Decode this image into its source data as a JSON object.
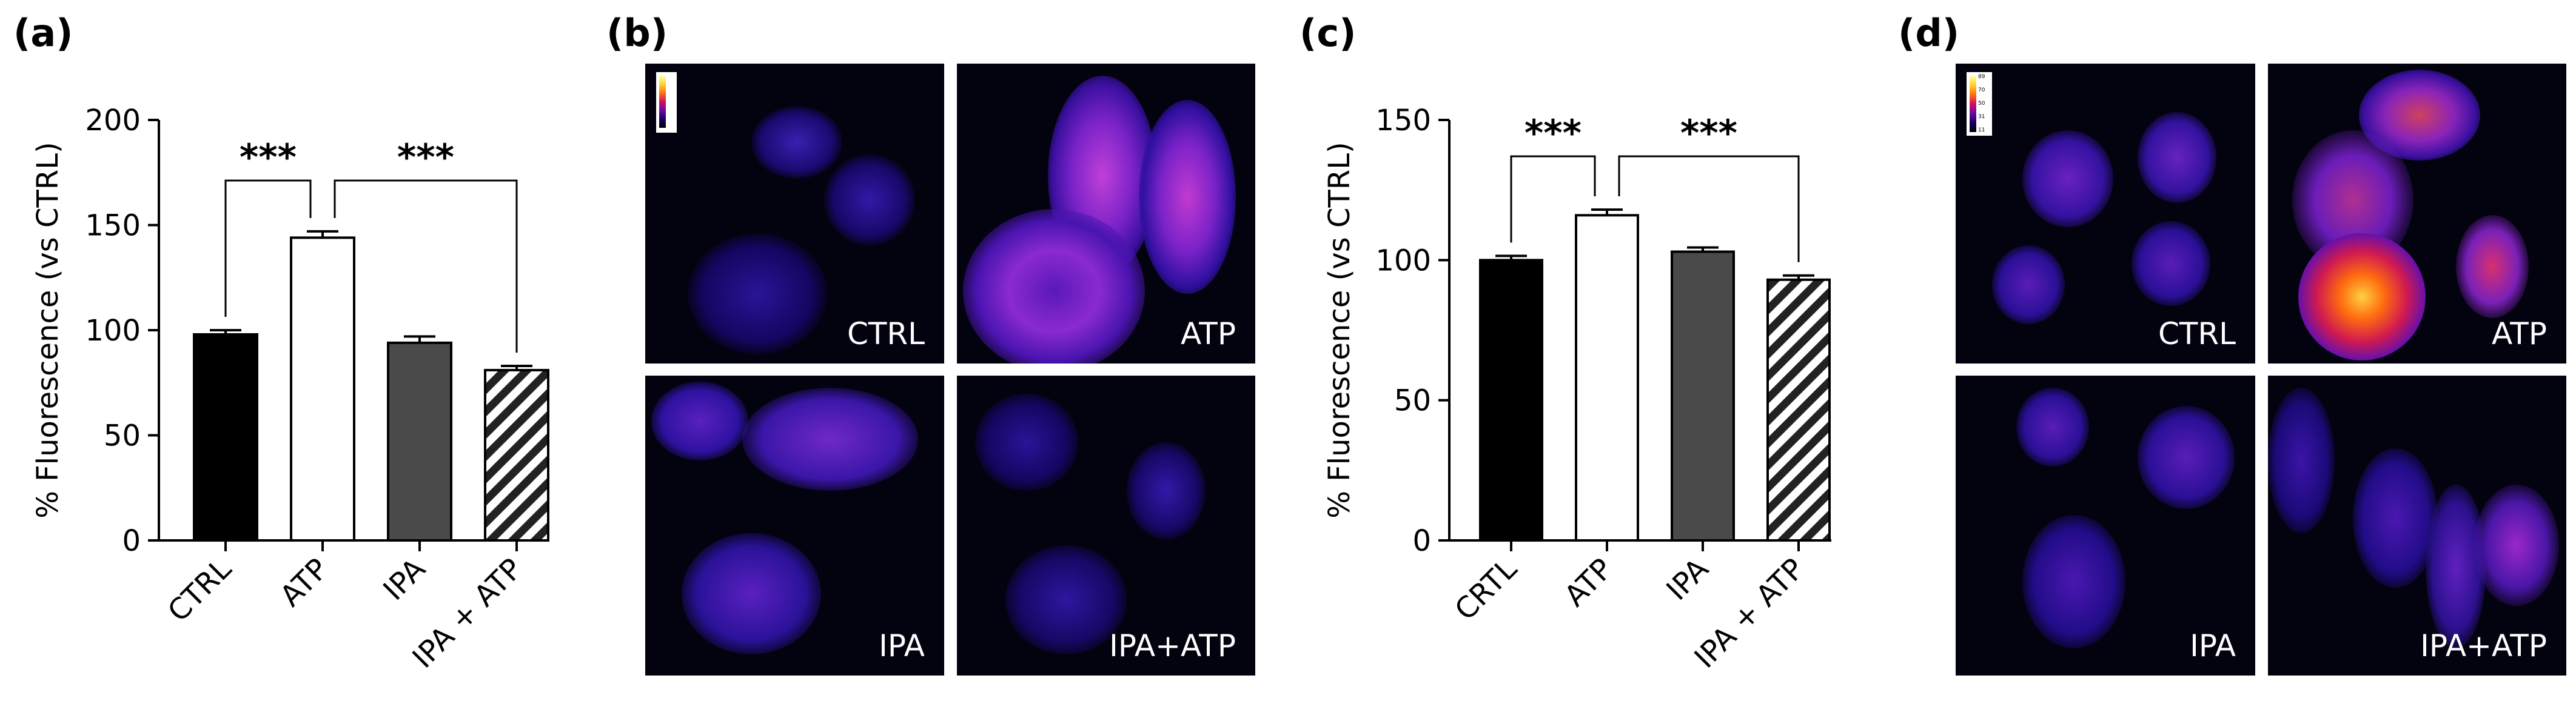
{
  "panel_labels": {
    "a": "(a)",
    "b": "(b)",
    "c": "(c)",
    "d": "(d)"
  },
  "chart_data": [
    {
      "type": "bar",
      "panel": "(a)",
      "ylabel": "% Fluorescence (vs CTRL)",
      "ylim": [
        0,
        200
      ],
      "yticks": [
        0,
        50,
        100,
        150,
        200
      ],
      "categories": [
        "CTRL",
        "ATP",
        "IPA",
        "IPA + ATP"
      ],
      "values": [
        98,
        144,
        94,
        81
      ],
      "errors": [
        2,
        3,
        3,
        2
      ],
      "fills": [
        "solid-black",
        "white",
        "dark-gray",
        "hatched"
      ],
      "significance": [
        {
          "from": 0,
          "to": 1,
          "label": "***"
        },
        {
          "from": 1,
          "to": 3,
          "label": "***"
        }
      ]
    },
    {
      "type": "bar",
      "panel": "(c)",
      "ylabel": "% Fluorescence (vs CTRL)",
      "ylim": [
        0,
        150
      ],
      "yticks": [
        0,
        50,
        100,
        150
      ],
      "categories": [
        "CRTL",
        "ATP",
        "IPA",
        "IPA + ATP"
      ],
      "values": [
        100,
        116,
        103,
        93
      ],
      "errors": [
        1.5,
        2,
        1.5,
        1.5
      ],
      "fills": [
        "solid-black",
        "white",
        "dark-gray",
        "hatched"
      ],
      "significance": [
        {
          "from": 0,
          "to": 1,
          "label": "***"
        },
        {
          "from": 1,
          "to": 3,
          "label": "***"
        }
      ]
    }
  ],
  "micrographs_b": {
    "tl": "CTRL",
    "tr": "ATP",
    "bl": "IPA",
    "br": "IPA+ATP"
  },
  "micrographs_d": {
    "tl": "CTRL",
    "tr": "ATP",
    "bl": "IPA",
    "br": "IPA+ATP"
  },
  "colorbar_d_ticks": [
    "89",
    "70",
    "50",
    "31",
    "11"
  ],
  "colors": {
    "bar_black": "#000000",
    "bar_white": "#ffffff",
    "bar_gray": "#4a4a4a",
    "micro_bg": "#03020f",
    "cell_dim": "#2a10a0",
    "cell_bright": "#b040e0",
    "cell_hot": "#ff6a10"
  }
}
